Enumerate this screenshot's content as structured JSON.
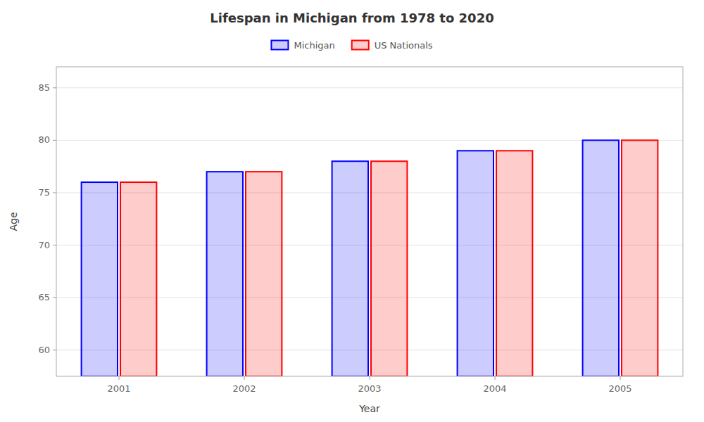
{
  "chart_data": {
    "type": "bar",
    "title": "Lifespan in Michigan from 1978 to 2020",
    "xlabel": "Year",
    "ylabel": "Age",
    "categories": [
      "2001",
      "2002",
      "2003",
      "2004",
      "2005"
    ],
    "series": [
      {
        "name": "Michigan",
        "color": "#0000ff",
        "values": [
          76,
          77,
          78,
          79,
          80
        ]
      },
      {
        "name": "US Nationals",
        "color": "#ff0000",
        "values": [
          76,
          77,
          78,
          79,
          80
        ]
      }
    ],
    "ylim": [
      57.5,
      87
    ],
    "yticks": [
      60,
      65,
      70,
      75,
      80,
      85
    ],
    "grid": true,
    "legend": "top"
  }
}
